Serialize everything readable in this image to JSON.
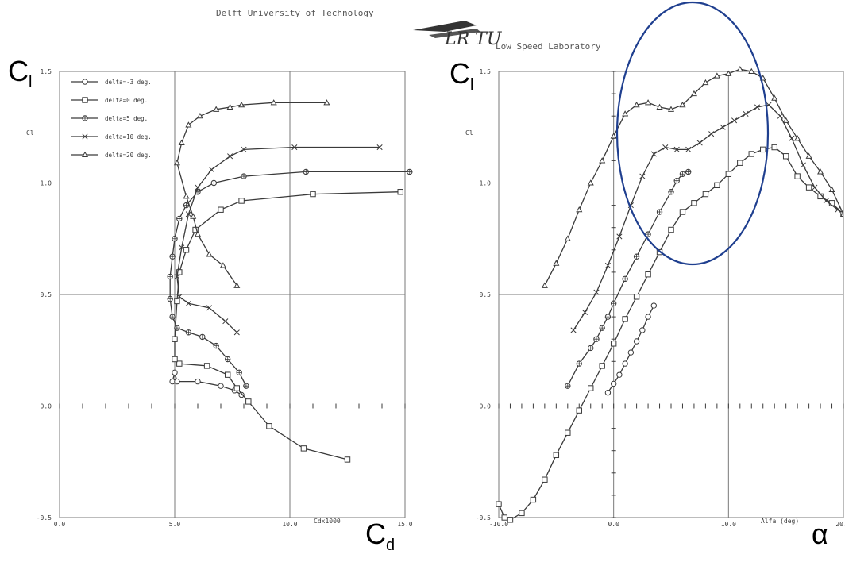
{
  "header": {
    "university": "Delft University of Technology",
    "lab": "Low Speed Laboratory",
    "logo_text": "LR TU"
  },
  "overlay": {
    "cl_left_main": "C",
    "cl_left_sub": "l",
    "cl_right_main": "C",
    "cl_right_sub": "l",
    "cd_main": "C",
    "cd_sub": "d",
    "alpha": "α",
    "highlight_color": "#1f3f8f"
  },
  "chart_data": [
    {
      "type": "line",
      "ylabel": "Cl",
      "xlabel": "Cdx1000",
      "xlim": [
        0,
        15
      ],
      "ylim": [
        -0.5,
        1.5
      ],
      "x_ticks": [
        "0.0",
        "5.0",
        "10.0",
        "15.0"
      ],
      "y_ticks": [
        "-0.5",
        "0.0",
        "0.5",
        "1.0",
        "1.5"
      ],
      "grid": true,
      "legend_position": "top-left",
      "series": [
        {
          "name": "delta=-3 deg.",
          "marker": "circle",
          "x": [
            4.9,
            5.0,
            5.1,
            6.0,
            7.0,
            7.6,
            7.9
          ],
          "y": [
            0.11,
            0.15,
            0.11,
            0.11,
            0.09,
            0.07,
            0.05
          ]
        },
        {
          "name": "delta=0 deg.",
          "marker": "square",
          "x": [
            12.5,
            10.6,
            9.1,
            8.2,
            7.7,
            7.3,
            6.4,
            5.2,
            5.0,
            5.0,
            5.1,
            5.2,
            5.5,
            5.9,
            7.0,
            7.9,
            11.0,
            14.8
          ],
          "y": [
            -0.24,
            -0.19,
            -0.09,
            0.02,
            0.08,
            0.14,
            0.18,
            0.19,
            0.21,
            0.3,
            0.47,
            0.6,
            0.7,
            0.79,
            0.88,
            0.92,
            0.95,
            0.96
          ]
        },
        {
          "name": "delta=5 deg.",
          "marker": "circle-cross",
          "x": [
            8.1,
            7.8,
            7.3,
            6.8,
            6.2,
            5.6,
            5.1,
            4.9,
            4.8,
            4.8,
            4.9,
            5.0,
            5.2,
            5.5,
            6.0,
            6.7,
            8.0,
            10.7,
            15.2
          ],
          "y": [
            0.09,
            0.15,
            0.21,
            0.27,
            0.31,
            0.33,
            0.35,
            0.4,
            0.48,
            0.58,
            0.67,
            0.75,
            0.84,
            0.9,
            0.96,
            1.0,
            1.03,
            1.05,
            1.05
          ]
        },
        {
          "name": "delta=10 deg.",
          "marker": "x",
          "x": [
            7.7,
            7.2,
            6.5,
            5.6,
            5.2,
            5.1,
            5.3,
            5.6,
            6.0,
            6.6,
            7.4,
            8.0,
            10.2,
            13.9
          ],
          "y": [
            0.33,
            0.38,
            0.44,
            0.46,
            0.49,
            0.58,
            0.71,
            0.86,
            0.98,
            1.06,
            1.12,
            1.15,
            1.16,
            1.16
          ]
        },
        {
          "name": "delta=20 deg.",
          "marker": "triangle",
          "x": [
            7.7,
            7.1,
            6.5,
            6.0,
            5.8,
            5.5,
            5.1,
            5.3,
            5.6,
            6.1,
            6.8,
            7.4,
            7.9,
            9.3,
            11.6
          ],
          "y": [
            0.54,
            0.63,
            0.68,
            0.77,
            0.85,
            0.94,
            1.09,
            1.18,
            1.26,
            1.3,
            1.33,
            1.34,
            1.35,
            1.36,
            1.36
          ]
        }
      ]
    },
    {
      "type": "line",
      "ylabel": "Cl",
      "xlabel": "Alfa (deg)",
      "xlim": [
        -10,
        20
      ],
      "ylim": [
        -0.5,
        1.5
      ],
      "x_ticks": [
        "-10.0",
        "0.0",
        "10.0",
        "20.0"
      ],
      "y_ticks": [
        "-0.5",
        "0.0",
        "0.5",
        "1.0",
        "1.5"
      ],
      "grid": true,
      "series": [
        {
          "name": "delta=-3 deg.",
          "marker": "circle",
          "x": [
            -0.5,
            0.0,
            0.5,
            1.0,
            1.5,
            2.0,
            2.5,
            3.0,
            3.5
          ],
          "y": [
            0.06,
            0.1,
            0.14,
            0.19,
            0.24,
            0.29,
            0.34,
            0.4,
            0.45
          ]
        },
        {
          "name": "delta=0 deg.",
          "marker": "square",
          "x": [
            -10.0,
            -9.5,
            -9.0,
            -8.0,
            -7.0,
            -6.0,
            -5.0,
            -4.0,
            -3.0,
            -2.0,
            -1.0,
            0.0,
            1.0,
            2.0,
            3.0,
            4.0,
            5.0,
            6.0,
            7.0,
            8.0,
            9.0,
            10.0,
            11.0,
            12.0,
            13.0,
            14.0,
            15.0,
            16.0,
            17.0,
            18.0,
            19.0,
            20.0
          ],
          "y": [
            -0.44,
            -0.5,
            -0.51,
            -0.48,
            -0.42,
            -0.33,
            -0.22,
            -0.12,
            -0.02,
            0.08,
            0.18,
            0.28,
            0.39,
            0.49,
            0.59,
            0.69,
            0.79,
            0.87,
            0.91,
            0.95,
            0.99,
            1.04,
            1.09,
            1.13,
            1.15,
            1.16,
            1.12,
            1.03,
            0.98,
            0.94,
            0.91,
            0.86
          ]
        },
        {
          "name": "delta=5 deg.",
          "marker": "circle-cross",
          "x": [
            -4.0,
            -3.0,
            -2.0,
            -1.5,
            -1.0,
            -0.5,
            0.0,
            1.0,
            2.0,
            3.0,
            4.0,
            5.0,
            5.5,
            6.0,
            6.5
          ],
          "y": [
            0.09,
            0.19,
            0.26,
            0.3,
            0.35,
            0.4,
            0.46,
            0.57,
            0.67,
            0.77,
            0.87,
            0.96,
            1.01,
            1.04,
            1.05
          ]
        },
        {
          "name": "delta=10 deg.",
          "marker": "x",
          "x": [
            -3.5,
            -2.5,
            -1.5,
            -0.5,
            0.5,
            1.5,
            2.5,
            3.5,
            4.5,
            5.5,
            6.5,
            7.5,
            8.5,
            9.5,
            10.5,
            11.5,
            12.5,
            13.5,
            14.5,
            15.5,
            16.5,
            17.5,
            18.5,
            19.5
          ],
          "y": [
            0.34,
            0.42,
            0.51,
            0.63,
            0.76,
            0.9,
            1.03,
            1.13,
            1.16,
            1.15,
            1.15,
            1.18,
            1.22,
            1.25,
            1.28,
            1.31,
            1.34,
            1.35,
            1.3,
            1.2,
            1.08,
            0.98,
            0.92,
            0.88
          ]
        },
        {
          "name": "delta=20 deg.",
          "marker": "triangle",
          "x": [
            -6.0,
            -5.0,
            -4.0,
            -3.0,
            -2.0,
            -1.0,
            0.0,
            1.0,
            2.0,
            3.0,
            4.0,
            5.0,
            6.0,
            7.0,
            8.0,
            9.0,
            10.0,
            11.0,
            12.0,
            13.0,
            14.0,
            15.0,
            16.0,
            17.0,
            18.0,
            19.0,
            20.0
          ],
          "y": [
            0.54,
            0.64,
            0.75,
            0.88,
            1.0,
            1.1,
            1.21,
            1.31,
            1.35,
            1.36,
            1.34,
            1.33,
            1.35,
            1.4,
            1.45,
            1.48,
            1.49,
            1.51,
            1.5,
            1.47,
            1.38,
            1.28,
            1.2,
            1.12,
            1.05,
            0.97,
            0.86
          ]
        }
      ]
    }
  ]
}
